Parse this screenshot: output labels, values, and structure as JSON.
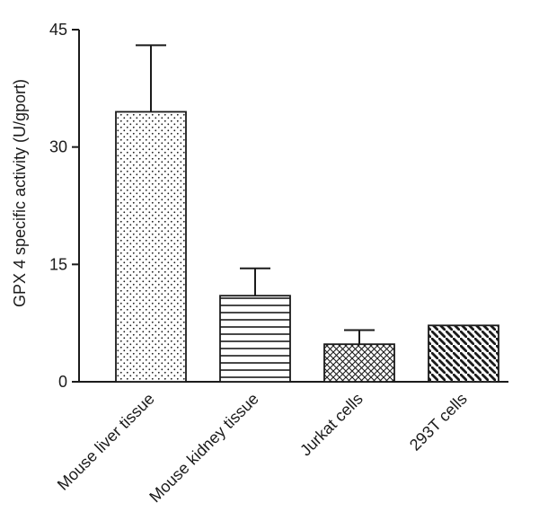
{
  "chart_data": {
    "type": "bar",
    "title": "",
    "xlabel": "",
    "ylabel": "GPX 4 specific activity (U/gport)",
    "ylim": [
      0,
      45
    ],
    "yticks": [
      0,
      15,
      30,
      45
    ],
    "grid": false,
    "legend": "none",
    "categories": [
      "Mouse liver tissue",
      "Mouse kidney tissue",
      "Jurkat cells",
      "293T cells"
    ],
    "series": [
      {
        "name": "GPX 4 specific activity",
        "values": [
          34.5,
          11,
          4.8,
          7.2
        ],
        "errors_upper": [
          8.5,
          3.5,
          1.8,
          0
        ]
      }
    ],
    "bar_patterns": [
      "dots",
      "horizontal-lines",
      "crosshatch",
      "diagonal-lines"
    ],
    "style": {
      "bar_fill": "#ffffff",
      "ink": "#1b1b1b",
      "background": "#ffffff"
    }
  }
}
